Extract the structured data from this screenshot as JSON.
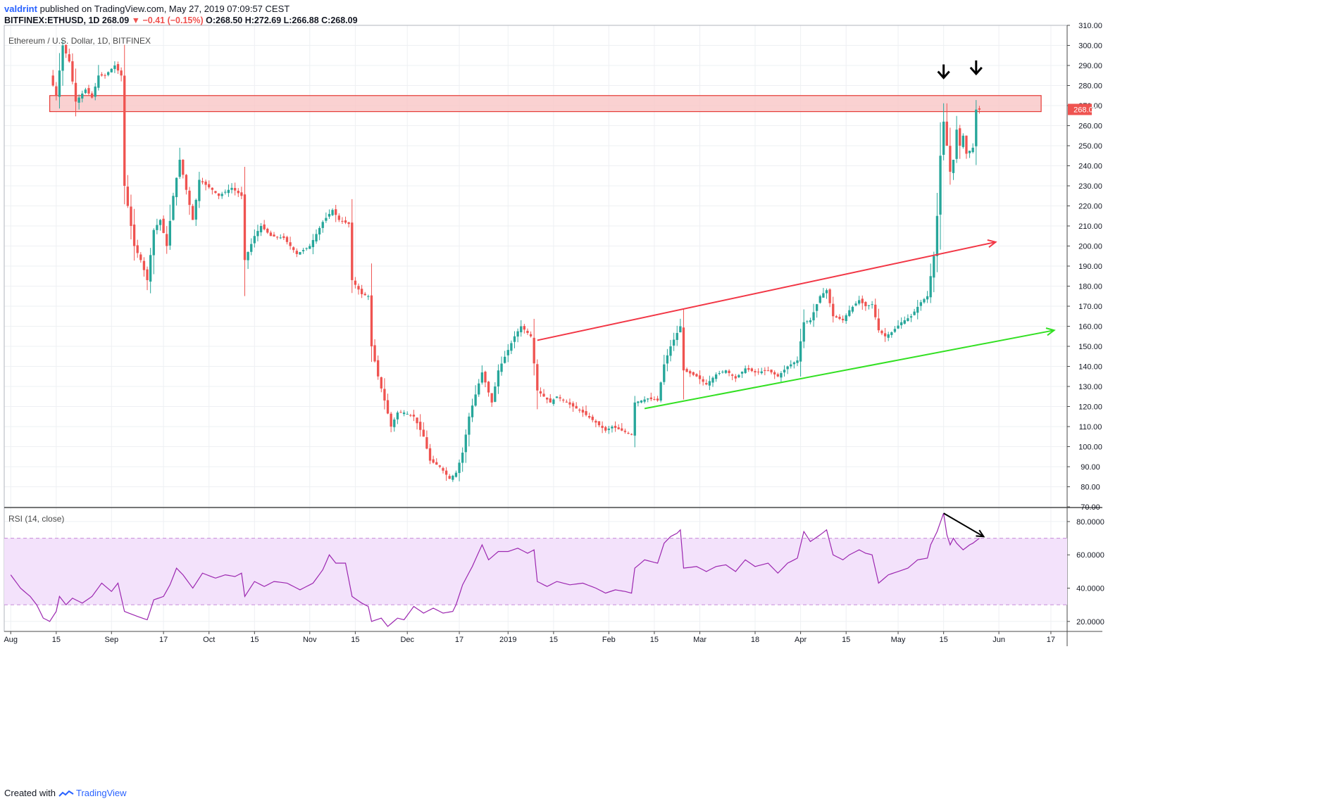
{
  "header": {
    "author": "valdrint",
    "published": "published on TradingView.com, May 27, 2019 07:09:57 CEST",
    "symbol": "BITFINEX:ETHUSD, 1D",
    "last": "268.09",
    "change": "▼ −0.41 (−0.15%)",
    "ohlc": "O:268.50 H:272.69 L:266.88 C:268.09"
  },
  "footer": {
    "created": "Created with",
    "brand": "TradingView"
  },
  "colors": {
    "up": "#26a69a",
    "down": "#ef5350",
    "zone_fill": "#f9c6c6",
    "zone_stroke": "#e53935",
    "resistance": "#f23645",
    "support": "#32e022",
    "rsi_line": "#9c27b0",
    "rsi_band": "#f3e2fb",
    "arrow": "#000000"
  },
  "chart_data": [
    {
      "type": "candlestick",
      "title": "Ethereum / U.S. Dollar, 1D, BITFINEX",
      "ylim": [
        70,
        310
      ],
      "y_ticks": [
        "310.00",
        "300.00",
        "290.00",
        "280.00",
        "270.00",
        "260.00",
        "250.00",
        "240.00",
        "230.00",
        "220.00",
        "210.00",
        "200.00",
        "190.00",
        "180.00",
        "170.00",
        "160.00",
        "150.00",
        "140.00",
        "130.00",
        "120.00",
        "110.00",
        "100.00",
        "90.00",
        "80.00",
        "70.00"
      ],
      "x_ticks": [
        {
          "label": "Aug",
          "date": "2018-08-01"
        },
        {
          "label": "15",
          "date": "2018-08-15"
        },
        {
          "label": "Sep",
          "date": "2018-09-01"
        },
        {
          "label": "17",
          "date": "2018-09-17"
        },
        {
          "label": "Oct",
          "date": "2018-10-01"
        },
        {
          "label": "15",
          "date": "2018-10-15"
        },
        {
          "label": "Nov",
          "date": "2018-11-01"
        },
        {
          "label": "15",
          "date": "2018-11-15"
        },
        {
          "label": "Dec",
          "date": "2018-12-01"
        },
        {
          "label": "17",
          "date": "2018-12-17"
        },
        {
          "label": "2019",
          "date": "2019-01-01"
        },
        {
          "label": "15",
          "date": "2019-01-15"
        },
        {
          "label": "Feb",
          "date": "2019-02-01"
        },
        {
          "label": "15",
          "date": "2019-02-15"
        },
        {
          "label": "Mar",
          "date": "2019-03-01"
        },
        {
          "label": "18",
          "date": "2019-03-18"
        },
        {
          "label": "Apr",
          "date": "2019-04-01"
        },
        {
          "label": "15",
          "date": "2019-04-15"
        },
        {
          "label": "May",
          "date": "2019-05-01"
        },
        {
          "label": "15",
          "date": "2019-05-15"
        },
        {
          "label": "Jun",
          "date": "2019-06-01"
        },
        {
          "label": "17",
          "date": "2019-06-17"
        }
      ],
      "last_price_label": "268.09",
      "resistance_zone": {
        "from": "2018-08-13",
        "to": "2019-06-14",
        "low": 267,
        "high": 275
      },
      "trendlines": [
        {
          "kind": "resistance",
          "from": [
            "2019-01-10",
            153
          ],
          "to": [
            "2019-05-31",
            202
          ]
        },
        {
          "kind": "support",
          "from": [
            "2019-02-12",
            119
          ],
          "to": [
            "2019-06-18",
            158
          ]
        }
      ],
      "markers": [
        {
          "date": "2019-05-15",
          "price": 287
        },
        {
          "date": "2019-05-25",
          "price": 289
        }
      ],
      "anchors": [
        [
          "2018-08-13",
          285
        ],
        [
          "2018-08-15",
          275
        ],
        [
          "2018-08-17",
          300
        ],
        [
          "2018-08-19",
          292
        ],
        [
          "2018-08-21",
          272
        ],
        [
          "2018-08-24",
          278
        ],
        [
          "2018-08-26",
          274
        ],
        [
          "2018-08-28",
          285
        ],
        [
          "2018-08-30",
          285
        ],
        [
          "2018-09-02",
          290
        ],
        [
          "2018-09-04",
          285
        ],
        [
          "2018-09-05",
          230
        ],
        [
          "2018-09-08",
          200
        ],
        [
          "2018-09-10",
          193
        ],
        [
          "2018-09-12",
          183
        ],
        [
          "2018-09-14",
          208
        ],
        [
          "2018-09-16",
          213
        ],
        [
          "2018-09-18",
          200
        ],
        [
          "2018-09-20",
          225
        ],
        [
          "2018-09-22",
          243
        ],
        [
          "2018-09-24",
          228
        ],
        [
          "2018-09-26",
          213
        ],
        [
          "2018-09-28",
          233
        ],
        [
          "2018-10-02",
          228
        ],
        [
          "2018-10-04",
          225
        ],
        [
          "2018-10-08",
          229
        ],
        [
          "2018-10-11",
          225
        ],
        [
          "2018-10-12",
          193
        ],
        [
          "2018-10-15",
          205
        ],
        [
          "2018-10-17",
          210
        ],
        [
          "2018-10-20",
          205
        ],
        [
          "2018-10-24",
          204
        ],
        [
          "2018-10-28",
          196
        ],
        [
          "2018-11-01",
          200
        ],
        [
          "2018-11-05",
          212
        ],
        [
          "2018-11-08",
          218
        ],
        [
          "2018-11-10",
          213
        ],
        [
          "2018-11-13",
          211
        ],
        [
          "2018-11-14",
          183
        ],
        [
          "2018-11-17",
          176
        ],
        [
          "2018-11-19",
          175
        ],
        [
          "2018-11-20",
          150
        ],
        [
          "2018-11-22",
          135
        ],
        [
          "2018-11-24",
          123
        ],
        [
          "2018-11-26",
          110
        ],
        [
          "2018-11-28",
          117
        ],
        [
          "2018-11-30",
          117
        ],
        [
          "2018-12-03",
          115
        ],
        [
          "2018-12-06",
          105
        ],
        [
          "2018-12-08",
          93
        ],
        [
          "2018-12-11",
          90
        ],
        [
          "2018-12-14",
          84
        ],
        [
          "2018-12-16",
          87
        ],
        [
          "2018-12-18",
          97
        ],
        [
          "2018-12-20",
          115
        ],
        [
          "2018-12-24",
          137
        ],
        [
          "2018-12-27",
          122
        ],
        [
          "2018-12-29",
          138
        ],
        [
          "2019-01-03",
          155
        ],
        [
          "2019-01-05",
          160
        ],
        [
          "2019-01-08",
          155
        ],
        [
          "2019-01-10",
          128
        ],
        [
          "2019-01-12",
          125
        ],
        [
          "2019-01-14",
          122
        ],
        [
          "2019-01-16",
          125
        ],
        [
          "2019-01-20",
          121
        ],
        [
          "2019-01-24",
          117
        ],
        [
          "2019-01-28",
          112
        ],
        [
          "2019-01-31",
          108
        ],
        [
          "2019-02-02",
          110
        ],
        [
          "2019-02-05",
          108
        ],
        [
          "2019-02-08",
          106
        ],
        [
          "2019-02-09",
          122
        ],
        [
          "2019-02-13",
          124
        ],
        [
          "2019-02-16",
          123
        ],
        [
          "2019-02-18",
          141
        ],
        [
          "2019-02-20",
          150
        ],
        [
          "2019-02-23",
          160
        ],
        [
          "2019-02-24",
          138
        ],
        [
          "2019-02-28",
          135
        ],
        [
          "2019-03-03",
          131
        ],
        [
          "2019-03-06",
          136
        ],
        [
          "2019-03-09",
          138
        ],
        [
          "2019-03-12",
          134
        ],
        [
          "2019-03-15",
          139
        ],
        [
          "2019-03-18",
          137
        ],
        [
          "2019-03-22",
          138
        ],
        [
          "2019-03-25",
          135
        ],
        [
          "2019-03-28",
          140
        ],
        [
          "2019-03-31",
          143
        ],
        [
          "2019-04-02",
          162
        ],
        [
          "2019-04-04",
          163
        ],
        [
          "2019-04-07",
          175
        ],
        [
          "2019-04-09",
          178
        ],
        [
          "2019-04-11",
          165
        ],
        [
          "2019-04-14",
          163
        ],
        [
          "2019-04-16",
          168
        ],
        [
          "2019-04-19",
          173
        ],
        [
          "2019-04-21",
          170
        ],
        [
          "2019-04-23",
          171
        ],
        [
          "2019-04-25",
          158
        ],
        [
          "2019-04-27",
          155
        ],
        [
          "2019-04-29",
          157
        ],
        [
          "2019-05-02",
          162
        ],
        [
          "2019-05-05",
          165
        ],
        [
          "2019-05-08",
          172
        ],
        [
          "2019-05-10",
          175
        ],
        [
          "2019-05-11",
          185
        ],
        [
          "2019-05-12",
          195
        ],
        [
          "2019-05-13",
          215
        ],
        [
          "2019-05-14",
          245
        ],
        [
          "2019-05-15",
          262
        ],
        [
          "2019-05-16",
          250
        ],
        [
          "2019-05-17",
          237
        ],
        [
          "2019-05-18",
          243
        ],
        [
          "2019-05-19",
          258
        ],
        [
          "2019-05-20",
          250
        ],
        [
          "2019-05-21",
          255
        ],
        [
          "2019-05-22",
          246
        ],
        [
          "2019-05-24",
          249
        ],
        [
          "2019-05-25",
          268
        ],
        [
          "2019-05-26",
          268
        ]
      ]
    },
    {
      "type": "line",
      "title": "RSI (14, close)",
      "ylim": [
        14,
        88
      ],
      "y_ticks": [
        "80.0000",
        "60.0000",
        "40.0000",
        "20.0000"
      ],
      "bands": {
        "upper": 70,
        "lower": 30
      },
      "divergence_arrow": {
        "from": [
          "2019-05-15",
          85
        ],
        "to": [
          "2019-05-26",
          71
        ]
      },
      "anchors": [
        [
          "2018-08-01",
          48
        ],
        [
          "2018-08-04",
          40
        ],
        [
          "2018-08-07",
          35
        ],
        [
          "2018-08-09",
          30
        ],
        [
          "2018-08-11",
          22
        ],
        [
          "2018-08-13",
          20
        ],
        [
          "2018-08-15",
          26
        ],
        [
          "2018-08-16",
          35
        ],
        [
          "2018-08-18",
          30
        ],
        [
          "2018-08-20",
          34
        ],
        [
          "2018-08-23",
          31
        ],
        [
          "2018-08-26",
          35
        ],
        [
          "2018-08-29",
          43
        ],
        [
          "2018-09-01",
          38
        ],
        [
          "2018-09-03",
          43
        ],
        [
          "2018-09-05",
          26
        ],
        [
          "2018-09-09",
          23
        ],
        [
          "2018-09-12",
          21
        ],
        [
          "2018-09-14",
          33
        ],
        [
          "2018-09-17",
          35
        ],
        [
          "2018-09-19",
          42
        ],
        [
          "2018-09-21",
          52
        ],
        [
          "2018-09-23",
          48
        ],
        [
          "2018-09-26",
          40
        ],
        [
          "2018-09-29",
          49
        ],
        [
          "2018-10-03",
          46
        ],
        [
          "2018-10-06",
          48
        ],
        [
          "2018-10-09",
          47
        ],
        [
          "2018-10-11",
          49
        ],
        [
          "2018-10-12",
          35
        ],
        [
          "2018-10-15",
          44
        ],
        [
          "2018-10-18",
          41
        ],
        [
          "2018-10-21",
          44
        ],
        [
          "2018-10-25",
          43
        ],
        [
          "2018-10-29",
          39
        ],
        [
          "2018-11-02",
          43
        ],
        [
          "2018-11-05",
          51
        ],
        [
          "2018-11-07",
          60
        ],
        [
          "2018-11-09",
          55
        ],
        [
          "2018-11-12",
          55
        ],
        [
          "2018-11-14",
          35
        ],
        [
          "2018-11-17",
          31
        ],
        [
          "2018-11-19",
          29
        ],
        [
          "2018-11-20",
          20
        ],
        [
          "2018-11-23",
          22
        ],
        [
          "2018-11-25",
          17
        ],
        [
          "2018-11-28",
          22
        ],
        [
          "2018-11-30",
          21
        ],
        [
          "2018-12-03",
          29
        ],
        [
          "2018-12-06",
          25
        ],
        [
          "2018-12-09",
          28
        ],
        [
          "2018-12-12",
          25
        ],
        [
          "2018-12-15",
          26
        ],
        [
          "2018-12-16",
          30
        ],
        [
          "2018-12-18",
          42
        ],
        [
          "2018-12-21",
          53
        ],
        [
          "2018-12-24",
          66
        ],
        [
          "2018-12-26",
          57
        ],
        [
          "2018-12-29",
          62
        ],
        [
          "2019-01-01",
          62
        ],
        [
          "2019-01-04",
          64
        ],
        [
          "2019-01-07",
          61
        ],
        [
          "2019-01-09",
          63
        ],
        [
          "2019-01-10",
          44
        ],
        [
          "2019-01-13",
          41
        ],
        [
          "2019-01-16",
          44
        ],
        [
          "2019-01-20",
          42
        ],
        [
          "2019-01-24",
          43
        ],
        [
          "2019-01-28",
          40
        ],
        [
          "2019-01-31",
          37
        ],
        [
          "2019-02-03",
          39
        ],
        [
          "2019-02-06",
          38
        ],
        [
          "2019-02-08",
          37
        ],
        [
          "2019-02-09",
          52
        ],
        [
          "2019-02-12",
          57
        ],
        [
          "2019-02-16",
          55
        ],
        [
          "2019-02-18",
          67
        ],
        [
          "2019-02-20",
          71
        ],
        [
          "2019-02-22",
          73
        ],
        [
          "2019-02-23",
          75
        ],
        [
          "2019-02-24",
          52
        ],
        [
          "2019-02-28",
          53
        ],
        [
          "2019-03-03",
          50
        ],
        [
          "2019-03-06",
          53
        ],
        [
          "2019-03-09",
          54
        ],
        [
          "2019-03-12",
          50
        ],
        [
          "2019-03-15",
          57
        ],
        [
          "2019-03-18",
          53
        ],
        [
          "2019-03-22",
          55
        ],
        [
          "2019-03-25",
          49
        ],
        [
          "2019-03-28",
          55
        ],
        [
          "2019-03-31",
          58
        ],
        [
          "2019-04-02",
          74
        ],
        [
          "2019-04-04",
          68
        ],
        [
          "2019-04-07",
          72
        ],
        [
          "2019-04-09",
          75
        ],
        [
          "2019-04-11",
          60
        ],
        [
          "2019-04-14",
          57
        ],
        [
          "2019-04-16",
          60
        ],
        [
          "2019-04-19",
          63
        ],
        [
          "2019-04-21",
          61
        ],
        [
          "2019-04-23",
          60
        ],
        [
          "2019-04-25",
          43
        ],
        [
          "2019-04-28",
          48
        ],
        [
          "2019-05-01",
          50
        ],
        [
          "2019-05-04",
          52
        ],
        [
          "2019-05-07",
          57
        ],
        [
          "2019-05-10",
          58
        ],
        [
          "2019-05-11",
          66
        ],
        [
          "2019-05-13",
          74
        ],
        [
          "2019-05-15",
          85
        ],
        [
          "2019-05-16",
          72
        ],
        [
          "2019-05-17",
          66
        ],
        [
          "2019-05-18",
          70
        ],
        [
          "2019-05-19",
          67
        ],
        [
          "2019-05-21",
          63
        ],
        [
          "2019-05-23",
          66
        ],
        [
          "2019-05-24",
          67
        ],
        [
          "2019-05-26",
          70
        ]
      ]
    }
  ]
}
